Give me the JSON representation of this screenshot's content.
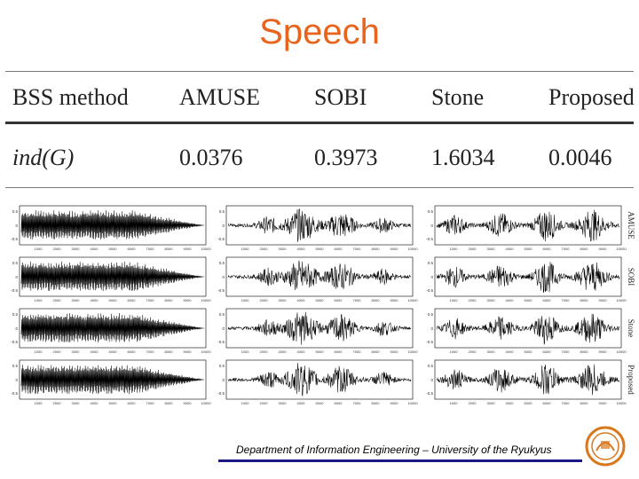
{
  "slide": {
    "title": "Speech",
    "footer": "Department of Information Engineering – University of the Ryukyus"
  },
  "table": {
    "headers": [
      "BSS method",
      "AMUSE",
      "SOBI",
      "Stone",
      "Proposed"
    ],
    "row_label": "ind(G)",
    "values": [
      "0.0376",
      "0.3973",
      "1.6034",
      "0.0046"
    ]
  },
  "waveforms": {
    "row_labels": [
      "AMUSE",
      "SOBI",
      "Stone",
      "Proposed"
    ],
    "x_ticks": [
      "1000",
      "2000",
      "3000",
      "4000",
      "5000",
      "6000",
      "7000",
      "8000",
      "9000",
      "10000"
    ],
    "y_ticks": [
      "0.5",
      "0",
      "-0.5"
    ],
    "colors": {
      "wave": "#000000",
      "frame": "#000000",
      "title": "#e8641c",
      "footer_rule": "#1a1a80",
      "logo": "#d9791f"
    }
  }
}
